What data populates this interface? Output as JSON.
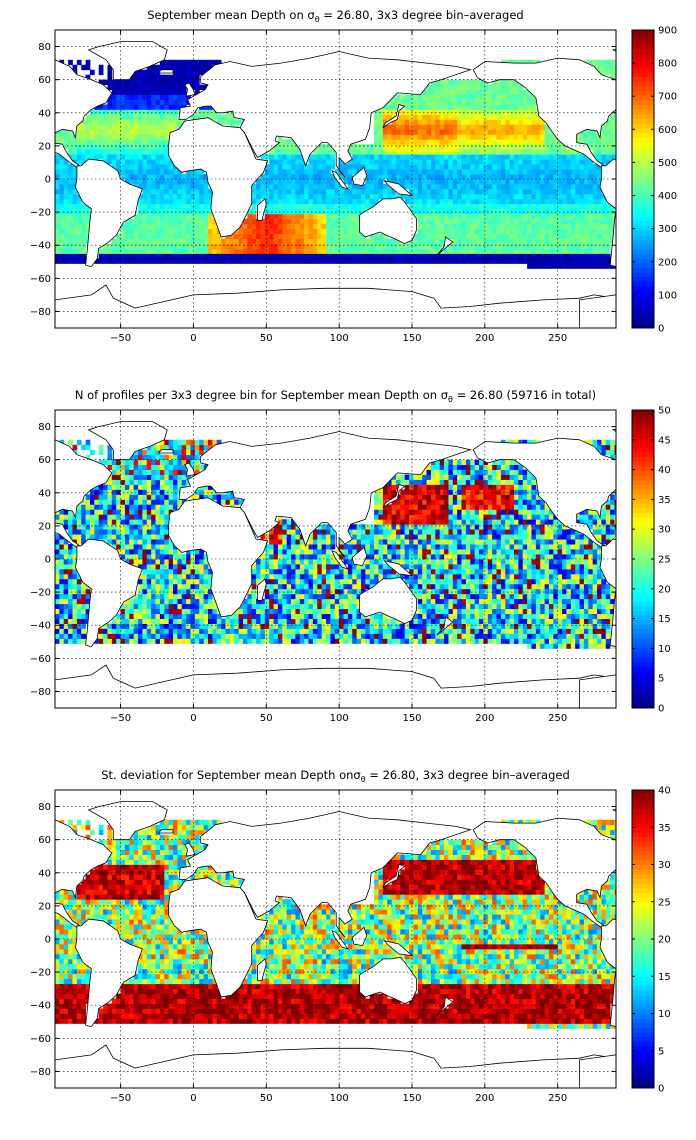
{
  "chart_data": [
    {
      "type": "heatmap",
      "title_parts": {
        "pre": "September mean Depth on ",
        "sigma": "σ",
        "sub": "θ",
        "post": " = 26.80, 3x3 degree bin–averaged"
      },
      "xlim": [
        -95,
        290
      ],
      "ylim": [
        -90,
        90
      ],
      "x_ticks": [
        -50,
        0,
        50,
        100,
        150,
        200,
        250
      ],
      "y_ticks": [
        80,
        60,
        40,
        20,
        0,
        -20,
        -40,
        -60,
        -80
      ],
      "x_tick_labels": [
        "−50",
        "0",
        "50",
        "100",
        "150",
        "200",
        "250"
      ],
      "y_tick_labels": [
        "80",
        "60",
        "40",
        "20",
        "0",
        "−20",
        "−40",
        "−60",
        "−80"
      ],
      "grid": true,
      "bin_size_deg": 3,
      "field": "depth",
      "colorbar": {
        "min": 0,
        "max": 900,
        "ticks": [
          0,
          100,
          200,
          300,
          400,
          500,
          600,
          700,
          800,
          900
        ],
        "tick_labels": [
          "0",
          "100",
          "200",
          "300",
          "400",
          "500",
          "600",
          "700",
          "800",
          "900"
        ],
        "colormap": "jet"
      }
    },
    {
      "type": "heatmap",
      "title_parts": {
        "pre": "N of profiles per 3x3 degree bin for September mean Depth on ",
        "sigma": "σ",
        "sub": "θ",
        "post": " = 26.80 (59716 in total)"
      },
      "xlim": [
        -95,
        290
      ],
      "ylim": [
        -90,
        90
      ],
      "x_ticks": [
        -50,
        0,
        50,
        100,
        150,
        200,
        250
      ],
      "y_ticks": [
        80,
        60,
        40,
        20,
        0,
        -20,
        -40,
        -60,
        -80
      ],
      "x_tick_labels": [
        "−50",
        "0",
        "50",
        "100",
        "150",
        "200",
        "250"
      ],
      "y_tick_labels": [
        "80",
        "60",
        "40",
        "20",
        "0",
        "−20",
        "−40",
        "−60",
        "−80"
      ],
      "grid": true,
      "bin_size_deg": 3,
      "field": "count",
      "colorbar": {
        "min": 0,
        "max": 50,
        "ticks": [
          0,
          5,
          10,
          15,
          20,
          25,
          30,
          35,
          40,
          45,
          50
        ],
        "tick_labels": [
          "0",
          "5",
          "10",
          "15",
          "20",
          "25",
          "30",
          "35",
          "40",
          "45",
          "50"
        ],
        "colormap": "jet"
      }
    },
    {
      "type": "heatmap",
      "title_parts": {
        "pre": "St. deviation for September mean Depth on",
        "sigma": "σ",
        "sub": "θ",
        "post": " = 26.80, 3x3 degree bin–averaged"
      },
      "xlim": [
        -95,
        290
      ],
      "ylim": [
        -90,
        90
      ],
      "x_ticks": [
        -50,
        0,
        50,
        100,
        150,
        200,
        250
      ],
      "y_ticks": [
        80,
        60,
        40,
        20,
        0,
        -20,
        -40,
        -60,
        -80
      ],
      "x_tick_labels": [
        "−50",
        "0",
        "50",
        "100",
        "150",
        "200",
        "250"
      ],
      "y_tick_labels": [
        "80",
        "60",
        "40",
        "20",
        "0",
        "−20",
        "−40",
        "−60",
        "−80"
      ],
      "grid": true,
      "bin_size_deg": 3,
      "field": "stdev",
      "colorbar": {
        "min": 0,
        "max": 40,
        "ticks": [
          0,
          5,
          10,
          15,
          20,
          25,
          30,
          35,
          40
        ],
        "tick_labels": [
          "0",
          "5",
          "10",
          "15",
          "20",
          "25",
          "30",
          "35",
          "40"
        ],
        "colormap": "jet"
      }
    }
  ]
}
